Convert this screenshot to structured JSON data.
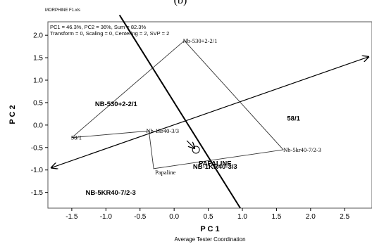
{
  "panel_letter": "(b)",
  "file_label": "MORPHINE F1.xls",
  "info_line1": "PC1 = 46.3%, PC2 = 36%, Sum = 82.3%",
  "info_line2": "Transform = 0, Scaling = 0, Centering = 2, SVP = 2",
  "chart_data": {
    "type": "scatter",
    "title": "Average Tester Coordination",
    "xlabel": "P C 1",
    "ylabel": "P C 2",
    "xlim": [
      -1.85,
      2.9
    ],
    "ylim": [
      -1.85,
      2.3
    ],
    "xticks": [
      -1.5,
      -1.0,
      -0.5,
      0.0,
      0.5,
      1.0,
      1.5,
      2.0,
      2.5
    ],
    "xtick_labels": [
      "-1.5",
      "-1.0",
      "-0.5",
      "0.0",
      "0.5",
      "1.0",
      "1.5",
      "2.0",
      "2.5"
    ],
    "yticks": [
      2.0,
      1.5,
      1.0,
      0.5,
      0.0,
      -0.5,
      -1.0,
      -1.5
    ],
    "ytick_labels": [
      "2.0",
      "1.5",
      "1.0",
      "0.5",
      "0.0",
      "-0.5",
      "-1.0",
      "-1.5"
    ],
    "grid": false,
    "testers": [
      {
        "label": "Nb-530+2-2/1",
        "x": 0.15,
        "y": 1.88
      },
      {
        "label": "58/1",
        "x": -1.5,
        "y": -0.28
      },
      {
        "label": "Nb-1kr40-3/3",
        "x": -0.37,
        "y": -0.13
      },
      {
        "label": "Nb-5kr40-7/2-3",
        "x": 1.6,
        "y": -0.55
      },
      {
        "label": "Papaline",
        "x": -0.3,
        "y": -0.97
      }
    ],
    "polygon_order": [
      "Nb-530+2-2/1",
      "Nb-5kr40-7/2-3",
      "Papaline",
      "Nb-1kr40-3/3",
      "58/1"
    ],
    "entries": [
      {
        "label": "NB-530+2-2/1",
        "x": -0.85,
        "y": 0.42
      },
      {
        "label": "58/1",
        "x": 1.75,
        "y": 0.1
      },
      {
        "label": "PAPALINE",
        "x": 0.6,
        "y": -0.9
      },
      {
        "label": "NB-1KR40-3/3",
        "x": 0.6,
        "y": -0.97
      },
      {
        "label": "NB-5KR40-7/2-3",
        "x": -0.93,
        "y": -1.55
      }
    ],
    "ate_axis": {
      "from": [
        -1.8,
        -0.95
      ],
      "to": [
        2.85,
        1.52
      ]
    },
    "perpendicular_axis": {
      "from": [
        -0.8,
        2.45
      ],
      "to": [
        0.97,
        -1.85
      ]
    },
    "average_point": {
      "x": 0.32,
      "y": -0.55
    }
  }
}
